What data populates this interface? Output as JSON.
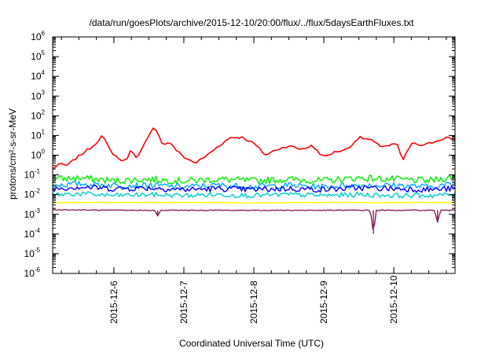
{
  "chart_data": {
    "type": "line",
    "title": "/data/run/goesPlots/archive/2015-12-10/20:00/flux/../flux/5daysEarthFluxes.txt",
    "xlabel": "Coordinated Universal Time (UTC)",
    "ylabel": "protons/cm²-s-sr-MeV",
    "yscale": "log",
    "ylim": [
      1e-06,
      1000000.0
    ],
    "y_ticks": [
      {
        "base": "10",
        "exp": "-6"
      },
      {
        "base": "10",
        "exp": "-5"
      },
      {
        "base": "10",
        "exp": "-4"
      },
      {
        "base": "10",
        "exp": "-3"
      },
      {
        "base": "10",
        "exp": "-2"
      },
      {
        "base": "10",
        "exp": "-1"
      },
      {
        "base": "10",
        "exp": "0"
      },
      {
        "base": "10",
        "exp": "1"
      },
      {
        "base": "10",
        "exp": "2"
      },
      {
        "base": "10",
        "exp": "3"
      },
      {
        "base": "10",
        "exp": "4"
      },
      {
        "base": "10",
        "exp": "5"
      },
      {
        "base": "10",
        "exp": "6"
      }
    ],
    "xlim": [
      "2015-12-05 03:00",
      "2015-12-10 21:00"
    ],
    "x_ticks": [
      "2015-12-6",
      "2015-12-7",
      "2015-12-8",
      "2015-12-9",
      "2015-12-10"
    ],
    "grid": false,
    "legend": "none",
    "series": [
      {
        "color": "#ff0000",
        "x": [
          "2015-12-05 03:00",
          "2015-12-05 05:00",
          "2015-12-05 08:00",
          "2015-12-05 11:00",
          "2015-12-05 14:00",
          "2015-12-05 17:00",
          "2015-12-05 20:00",
          "2015-12-05 23:00",
          "2015-12-06 02:00",
          "2015-12-06 04:00",
          "2015-12-06 06:00",
          "2015-12-06 08:00",
          "2015-12-06 11:00",
          "2015-12-06 14:00",
          "2015-12-06 17:00",
          "2015-12-06 19:00",
          "2015-12-06 21:00",
          "2015-12-07 00:00",
          "2015-12-07 04:00",
          "2015-12-07 08:00",
          "2015-12-07 12:00",
          "2015-12-07 16:00",
          "2015-12-07 20:00",
          "2015-12-08 00:00",
          "2015-12-08 04:00",
          "2015-12-08 08:00",
          "2015-12-08 12:00",
          "2015-12-08 16:00",
          "2015-12-08 20:00",
          "2015-12-09 00:00",
          "2015-12-09 04:00",
          "2015-12-09 08:00",
          "2015-12-09 12:00",
          "2015-12-09 16:00",
          "2015-12-09 19:00",
          "2015-12-09 22:00",
          "2015-12-10 01:00",
          "2015-12-10 03:00",
          "2015-12-10 06:00",
          "2015-12-10 10:00",
          "2015-12-10 14:00",
          "2015-12-10 18:00",
          "2015-12-10 21:00"
        ],
        "y": [
          0.2,
          0.35,
          0.3,
          0.7,
          1.5,
          3,
          10,
          1.5,
          0.6,
          0.5,
          2,
          0.7,
          5,
          30,
          3,
          5,
          2,
          0.8,
          0.4,
          1,
          3,
          8,
          8,
          4,
          1,
          2,
          3,
          2,
          3,
          0.8,
          1.5,
          2,
          8,
          6,
          3,
          3,
          4,
          0.5,
          4,
          3,
          5,
          8,
          6
        ]
      },
      {
        "color": "#00ee00",
        "x": [
          "2015-12-05 03:00",
          "2015-12-05 12:00",
          "2015-12-06 00:00",
          "2015-12-06 12:00",
          "2015-12-07 00:00",
          "2015-12-07 12:00",
          "2015-12-08 00:00",
          "2015-12-08 12:00",
          "2015-12-09 00:00",
          "2015-12-09 12:00",
          "2015-12-10 00:00",
          "2015-12-10 12:00",
          "2015-12-10 21:00"
        ],
        "y": [
          0.06,
          0.07,
          0.05,
          0.06,
          0.05,
          0.06,
          0.05,
          0.06,
          0.05,
          0.07,
          0.06,
          0.05,
          0.08
        ]
      },
      {
        "color": "#00aaff",
        "x": [
          "2015-12-05 03:00",
          "2015-12-05 12:00",
          "2015-12-06 00:00",
          "2015-12-06 12:00",
          "2015-12-07 00:00",
          "2015-12-07 12:00",
          "2015-12-08 00:00",
          "2015-12-08 12:00",
          "2015-12-09 00:00",
          "2015-12-09 12:00",
          "2015-12-10 00:00",
          "2015-12-10 12:00",
          "2015-12-10 21:00"
        ],
        "y": [
          0.03,
          0.035,
          0.03,
          0.03,
          0.025,
          0.03,
          0.025,
          0.03,
          0.025,
          0.03,
          0.03,
          0.025,
          0.035
        ]
      },
      {
        "color": "#0000ff",
        "x": [
          "2015-12-05 03:00",
          "2015-12-05 12:00",
          "2015-12-06 00:00",
          "2015-12-06 12:00",
          "2015-12-07 00:00",
          "2015-12-07 12:00",
          "2015-12-08 00:00",
          "2015-12-08 12:00",
          "2015-12-09 00:00",
          "2015-12-09 12:00",
          "2015-12-10 00:00",
          "2015-12-10 12:00",
          "2015-12-10 21:00"
        ],
        "y": [
          0.02,
          0.025,
          0.02,
          0.022,
          0.018,
          0.02,
          0.018,
          0.02,
          0.018,
          0.022,
          0.02,
          0.018,
          0.02
        ]
      },
      {
        "color": "#00cccc",
        "x": [
          "2015-12-05 03:00",
          "2015-12-05 12:00",
          "2015-12-06 00:00",
          "2015-12-06 12:00",
          "2015-12-07 00:00",
          "2015-12-07 12:00",
          "2015-12-08 00:00",
          "2015-12-08 12:00",
          "2015-12-09 00:00",
          "2015-12-09 12:00",
          "2015-12-10 00:00",
          "2015-12-10 12:00",
          "2015-12-10 21:00"
        ],
        "y": [
          0.01,
          0.011,
          0.009,
          0.01,
          0.009,
          0.01,
          0.009,
          0.01,
          0.009,
          0.01,
          0.009,
          0.009,
          0.01
        ]
      },
      {
        "color": "#ffff00",
        "x": [
          "2015-12-05 03:00",
          "2015-12-06 00:00",
          "2015-12-07 00:00",
          "2015-12-08 00:00",
          "2015-12-09 00:00",
          "2015-12-10 00:00",
          "2015-12-10 21:00"
        ],
        "y": [
          0.004,
          0.004,
          0.004,
          0.0038,
          0.004,
          0.0039,
          0.004
        ]
      },
      {
        "color": "#8b2060",
        "x": [
          "2015-12-05 03:00",
          "2015-12-06 00:00",
          "2015-12-06 14:00",
          "2015-12-06 15:00",
          "2015-12-06 16:00",
          "2015-12-07 00:00",
          "2015-12-08 00:00",
          "2015-12-09 00:00",
          "2015-12-09 16:00",
          "2015-12-09 17:00",
          "2015-12-09 18:00",
          "2015-12-10 00:00",
          "2015-12-10 14:00",
          "2015-12-10 15:00",
          "2015-12-10 16:00",
          "2015-12-10 21:00"
        ],
        "y": [
          0.0017,
          0.0016,
          0.0016,
          0.0008,
          0.0016,
          0.0016,
          0.0016,
          0.0016,
          0.0016,
          0.0001,
          0.0016,
          0.0016,
          0.0016,
          0.0004,
          0.0016,
          0.0016
        ]
      }
    ]
  }
}
